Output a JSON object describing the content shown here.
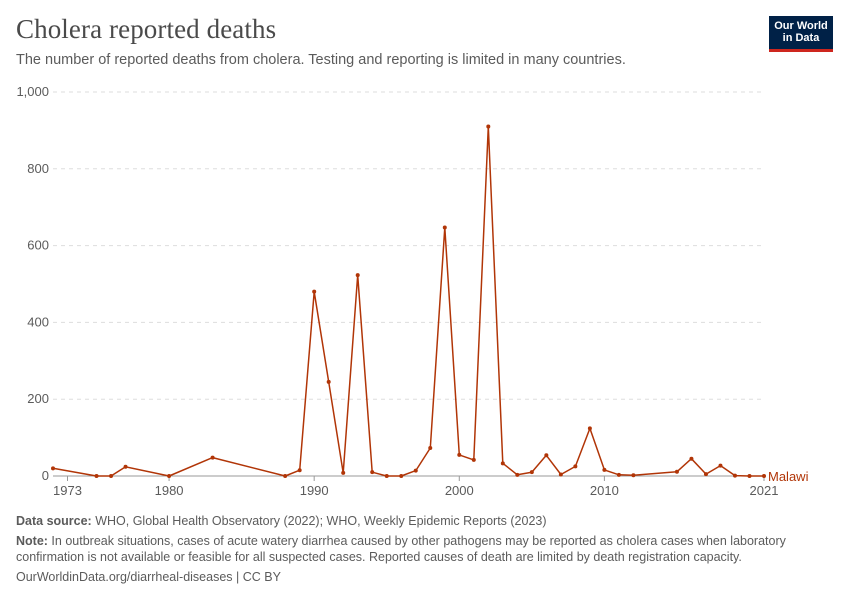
{
  "header": {
    "title": "Cholera reported deaths",
    "subtitle": "The number of reported deaths from cholera. Testing and reporting is limited in many countries.",
    "logo_line1": "Our World",
    "logo_line2": "in Data"
  },
  "footer": {
    "source_label": "Data source:",
    "source_text": " WHO, Global Health Observatory (2022); WHO, Weekly Epidemic Reports (2023)",
    "note_label": "Note:",
    "note_text": " In outbreak situations, cases of acute watery diarrhea caused by other pathogens may be reported as cholera cases when laboratory confirmation is not available or feasible for all suspected cases. Reported causes of death are limited by death registration capacity.",
    "url": "OurWorldinData.org/diarrheal-diseases | CC BY"
  },
  "colors": {
    "series": "#b13507",
    "grid": "#dddddd",
    "text": "#5b5b5b",
    "brand": "#002147",
    "brand_accent": "#ce261e"
  },
  "chart_data": {
    "type": "line",
    "xlim": [
      1972,
      2021
    ],
    "ylim": [
      0,
      1000
    ],
    "x_ticks": [
      1973,
      1980,
      1990,
      2000,
      2010,
      2021
    ],
    "y_ticks": [
      0,
      200,
      400,
      600,
      800,
      1000
    ],
    "y_tick_labels": [
      "0",
      "200",
      "400",
      "600",
      "800",
      "1,000"
    ],
    "grid": true,
    "series": [
      {
        "name": "Malawi",
        "x": [
          1972,
          1975,
          1976,
          1977,
          1980,
          1983,
          1988,
          1989,
          1990,
          1991,
          1992,
          1993,
          1994,
          1995,
          1996,
          1997,
          1998,
          1999,
          2000,
          2001,
          2002,
          2003,
          2004,
          2005,
          2006,
          2007,
          2008,
          2009,
          2010,
          2011,
          2012,
          2015,
          2016,
          2017,
          2018,
          2019,
          2020,
          2021
        ],
        "values": [
          20,
          0,
          0,
          24,
          0,
          48,
          0,
          15,
          480,
          245,
          8,
          523,
          10,
          0,
          0,
          14,
          73,
          647,
          55,
          42,
          910,
          33,
          3,
          10,
          54,
          4,
          25,
          124,
          16,
          3,
          2,
          11,
          45,
          5,
          27,
          1,
          0,
          0
        ]
      }
    ]
  }
}
